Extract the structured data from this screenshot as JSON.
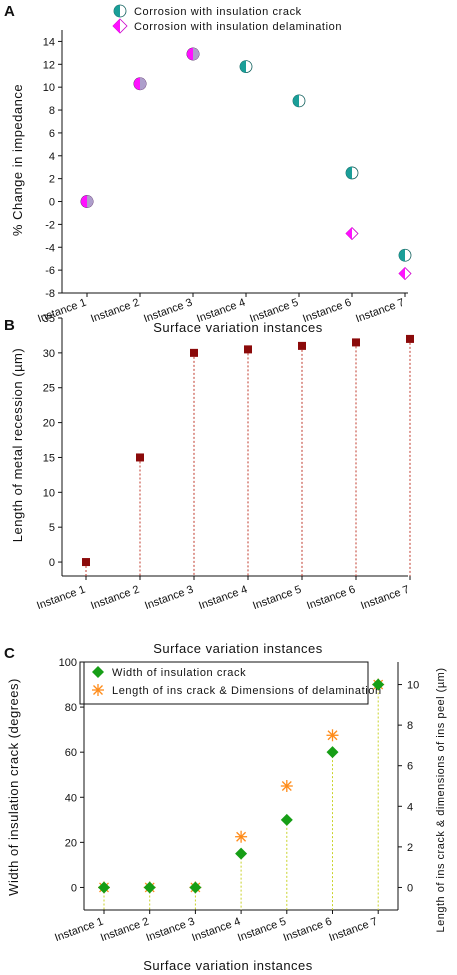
{
  "chart_data": [
    {
      "panel": "A",
      "type": "scatter",
      "categories": [
        "Instance 1",
        "Instance 2",
        "Instance 3",
        "Instance 4",
        "Instance 5",
        "Instance 6",
        "Instance 7"
      ],
      "series": [
        {
          "name": "Corrosion with insulation crack",
          "values": [
            0,
            10.3,
            12.9,
            11.8,
            8.8,
            2.5,
            -4.7
          ],
          "color": "#1a9e98",
          "marker": "half-filled-circle"
        },
        {
          "name": "Corrosion with insulation delamination",
          "values": [
            0,
            10.3,
            12.9,
            null,
            null,
            -2.8,
            -6.3
          ],
          "color": "#ff10ff",
          "marker": "half-filled-diamond"
        }
      ],
      "xlabel": "Surface variation instances",
      "ylabel": "% Change in impedance",
      "ylim": [
        -8,
        15
      ],
      "yticks": [
        -8,
        -6,
        -4,
        -2,
        0,
        2,
        4,
        6,
        8,
        10,
        12,
        14
      ],
      "legend_position": "top-right"
    },
    {
      "panel": "B",
      "type": "scatter",
      "categories": [
        "Instance 1",
        "Instance 2",
        "Instance 3",
        "Instance 4",
        "Instance 5",
        "Instance 6",
        "Instance 7"
      ],
      "series": [
        {
          "values": [
            0,
            15,
            30,
            30.5,
            31,
            31.5,
            32
          ],
          "color": "#8b0a0a",
          "marker": "square",
          "drop_lines": true
        }
      ],
      "xlabel": "Surface variation instances",
      "ylabel": "Length of metal recession (µm)",
      "ylim": [
        -2,
        35
      ],
      "yticks": [
        0,
        5,
        10,
        15,
        20,
        25,
        30,
        35
      ]
    },
    {
      "panel": "C",
      "type": "scatter",
      "categories": [
        "Instance 1",
        "Instance 2",
        "Instance 3",
        "Instance 4",
        "Instance 5",
        "Instance 6",
        "Instance 7"
      ],
      "series": [
        {
          "name": "Width of insulation crack",
          "values": [
            0,
            0,
            0,
            15,
            30,
            60,
            90
          ],
          "color": "#169e16",
          "marker": "diamond",
          "axis": "left",
          "drop_lines": true
        },
        {
          "name": "Length of ins crack & Dimensions of delamination",
          "values": [
            0,
            0,
            0,
            2.5,
            5,
            7.5,
            10
          ],
          "color": "#ff8c1a",
          "marker": "asterisk",
          "axis": "right"
        }
      ],
      "xlabel": "Surface variation instances",
      "ylabel": "Width of insulation crack (degrees)",
      "ylabel_right": "Length of ins crack & dimensions of ins peel (µm)",
      "ylim": [
        -10,
        100
      ],
      "yticks": [
        0,
        20,
        40,
        60,
        80,
        100
      ],
      "ylim_right": [
        -1.111,
        11.111
      ],
      "yticks_right": [
        0,
        2,
        4,
        6,
        8,
        10
      ],
      "legend_position": "top-left"
    }
  ]
}
